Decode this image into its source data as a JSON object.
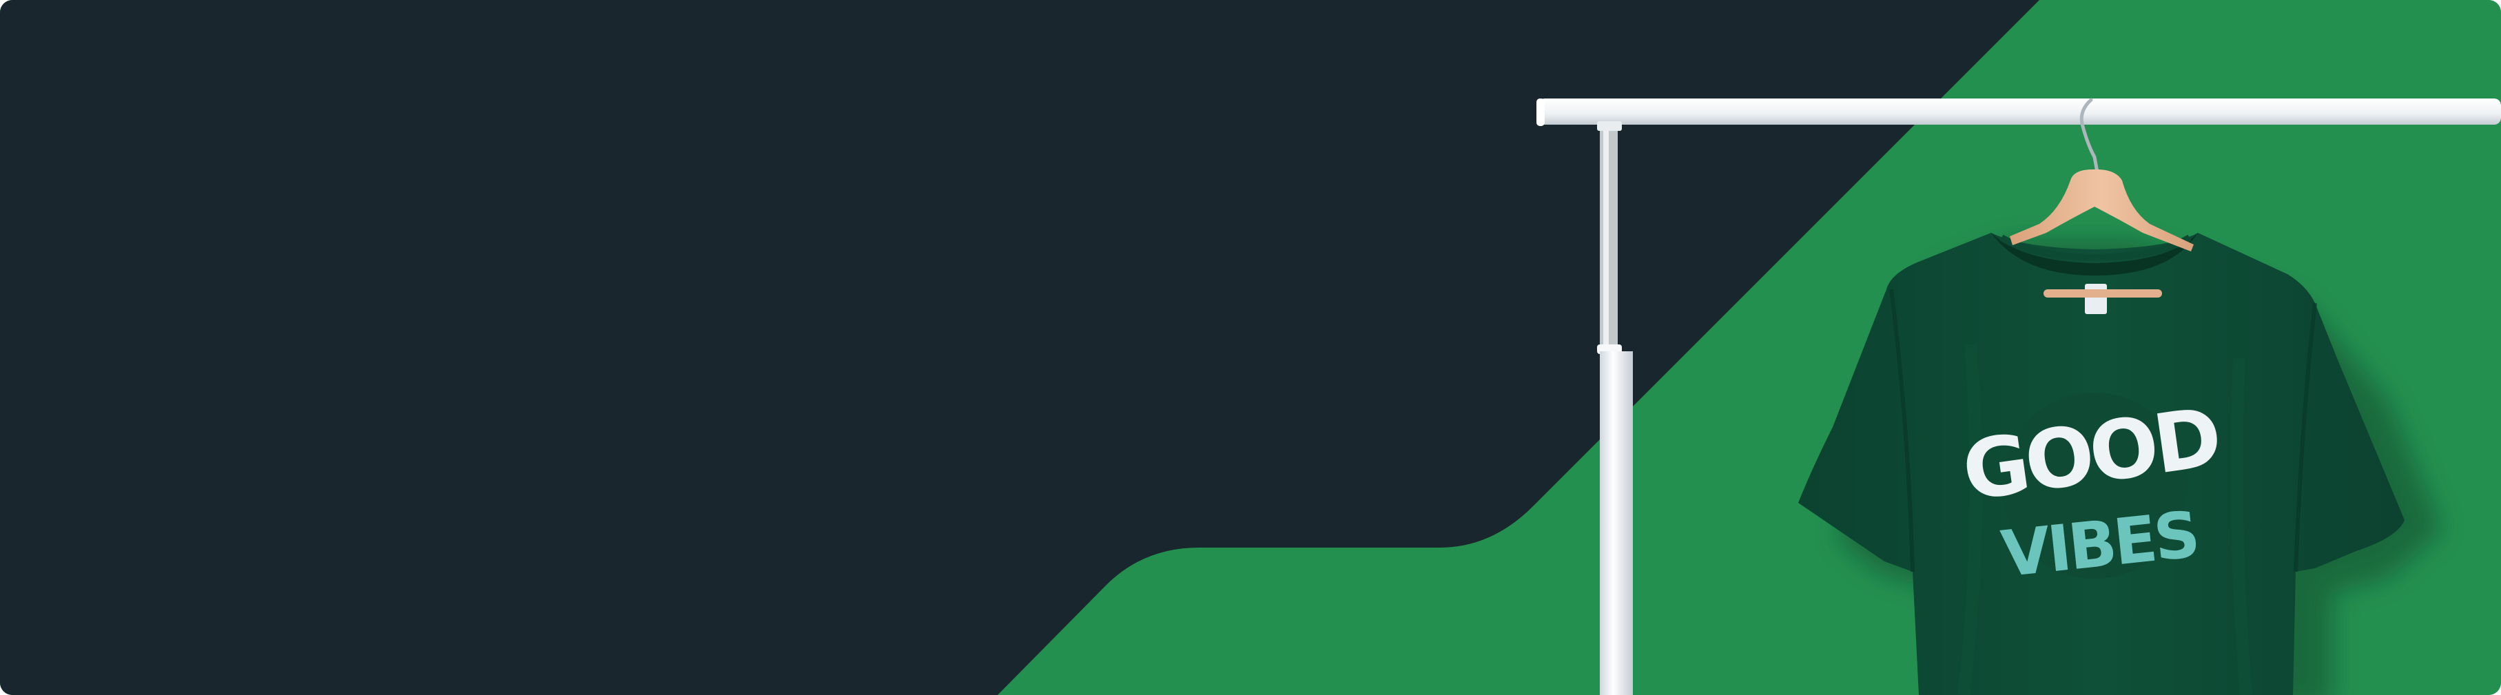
{
  "banner": {
    "colors": {
      "dark_panel": "#1a262d",
      "green_background": "#249050",
      "green_shade": "#1e7f45",
      "shirt": "#0e4a34",
      "shirt_shadow": "#0a3a28",
      "print_white": "#eef3f6",
      "print_teal": "#6cc5bd",
      "rack": "#f2f4f6",
      "hanger_wood": "#e9b995"
    },
    "shirt_print": {
      "line_1": "GOOD",
      "line_2": "VIBES"
    }
  }
}
